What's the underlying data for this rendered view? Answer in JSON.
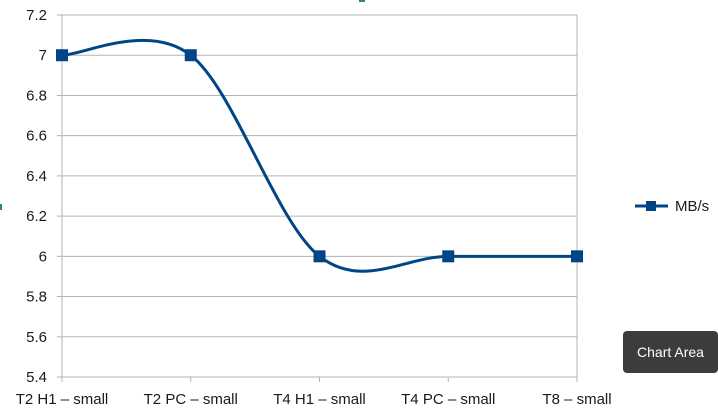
{
  "chart_data": {
    "type": "line",
    "categories": [
      "T2 H1 – small",
      "T2 PC – small",
      "T4 H1 – small",
      "T4 PC – small",
      "T8 – small"
    ],
    "series": [
      {
        "name": "MB/s",
        "values": [
          7,
          7,
          6,
          6,
          6
        ],
        "color": "#004586"
      }
    ],
    "ylim": [
      5.4,
      7.2
    ],
    "yticks": [
      "5.4",
      "5.6",
      "5.8",
      "6",
      "6.2",
      "6.4",
      "6.6",
      "6.8",
      "7",
      "7.2"
    ],
    "smooth": true,
    "marker": "square",
    "grid": true,
    "legend_position": "right"
  },
  "tooltip": {
    "text": "Chart Area"
  },
  "colors": {
    "series": "#004586",
    "grid": "#b3b3b3",
    "tooltip_bg": "#3c3c3c"
  }
}
